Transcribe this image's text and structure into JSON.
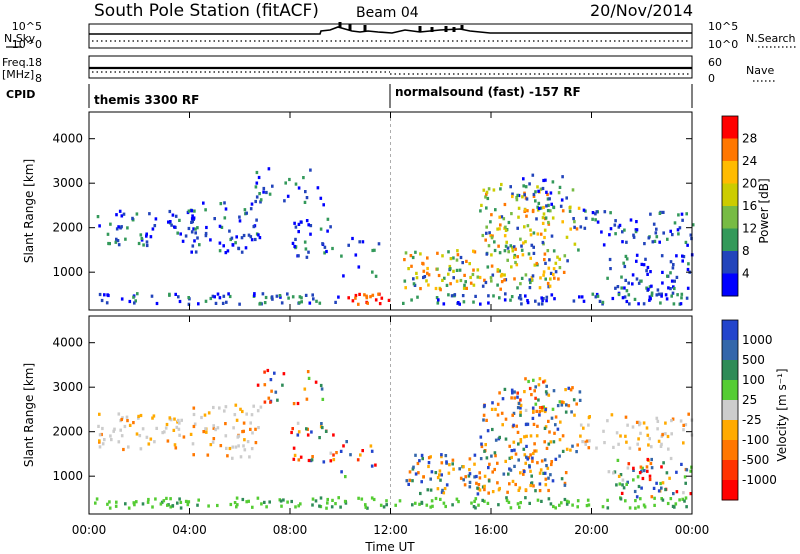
{
  "header": {
    "station": "South Pole Station (fitACF)",
    "beam": "Beam 04",
    "date": "20/Nov/2014"
  },
  "strips": {
    "nsky_label": "N.Sky",
    "nsearch_label": "N.Search",
    "freq_label_1": "Freq.",
    "freq_label_2": "[MHz]",
    "nave_label": "Nave",
    "cpid_label": "CPID",
    "nsky_ticks": [
      "10^5",
      "10^0"
    ],
    "nsearch_ticks": [
      "10^5",
      "10^0"
    ],
    "freq_ticks": [
      "18",
      "8"
    ],
    "nave_ticks": [
      "60",
      "0"
    ],
    "cpid_segments": [
      {
        "label": "themis 3300 RF",
        "start_hour": 0
      },
      {
        "label": "normalsound (fast) -157 RF",
        "start_hour": 12
      }
    ]
  },
  "chart_data": [
    {
      "type": "heatmap",
      "title": "Power",
      "xlabel": "Time UT",
      "ylabel": "Slant Range [km]",
      "xlim": [
        0,
        24
      ],
      "ylim": [
        150,
        4600
      ],
      "x_ticks": [
        "00:00",
        "04:00",
        "08:00",
        "12:00",
        "16:00",
        "20:00",
        "00:00"
      ],
      "y_ticks": [
        "1000",
        "2000",
        "3000",
        "4000"
      ],
      "colorbar": {
        "label": "Power [dB]",
        "ticks": [
          "28",
          "24",
          "20",
          "16",
          "12",
          "8",
          "4"
        ],
        "colors": [
          "#ff0000",
          "#ff7700",
          "#ffbb00",
          "#cccc00",
          "#77bb44",
          "#33995a",
          "#2244bb",
          "#0000ff"
        ]
      }
    },
    {
      "type": "heatmap",
      "title": "Velocity",
      "xlabel": "Time UT",
      "ylabel": "Slant Range [km]",
      "xlim": [
        0,
        24
      ],
      "ylim": [
        150,
        4600
      ],
      "x_ticks": [
        "00:00",
        "04:00",
        "08:00",
        "12:00",
        "16:00",
        "20:00",
        "00:00"
      ],
      "y_ticks": [
        "1000",
        "2000",
        "3000",
        "4000"
      ],
      "colorbar": {
        "label": "Velocity [m s⁻¹]",
        "ticks": [
          "1000",
          "500",
          "100",
          "25",
          "-25",
          "-100",
          "-500",
          "-1000"
        ],
        "colors": [
          "#2244cc",
          "#3366aa",
          "#2e8b57",
          "#55cc33",
          "#cccccc",
          "#ffaa00",
          "#ff7700",
          "#ff3300",
          "#ff0000"
        ]
      }
    }
  ]
}
